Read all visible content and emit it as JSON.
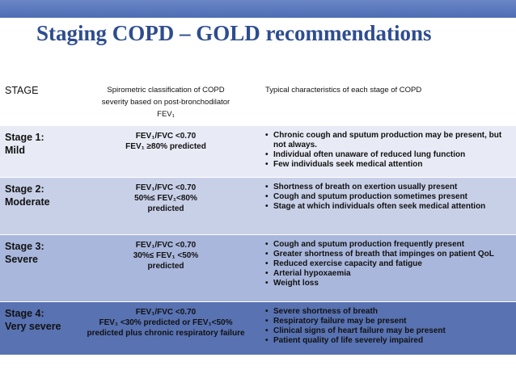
{
  "header": {
    "title": "Staging COPD – GOLD recommendations"
  },
  "table": {
    "columns": [
      "STAGE",
      [
        "Spirometric classification of COPD",
        "severity based on post-bronchodilator",
        "FEV₁"
      ],
      "Typical characteristics of each stage of COPD"
    ],
    "rows": [
      {
        "stage": [
          "Stage 1:",
          "Mild"
        ],
        "spirometry": [
          "FEV₁/FVC <0.70",
          "FEV₁ ≥80% predicted"
        ],
        "characteristics": [
          "Chronic cough and sputum production may be present, but not always.",
          "Individual often unaware of reduced lung function",
          "Few individuals seek medical attention"
        ]
      },
      {
        "stage": [
          "Stage 2:",
          "Moderate"
        ],
        "spirometry": [
          "FEV₁/FVC <0.70",
          "50%≤ FEV₁<80%",
          "predicted"
        ],
        "characteristics": [
          "Shortness of breath on exertion usually present",
          "Cough and sputum production sometimes present",
          "Stage at which individuals often seek medical attention"
        ]
      },
      {
        "stage": [
          "Stage 3:",
          "Severe"
        ],
        "spirometry": [
          "FEV₁/FVC <0.70",
          "30%≤ FEV₁ <50%",
          "predicted"
        ],
        "characteristics": [
          "Cough and sputum production frequently present",
          "Greater shortness of breath that impinges on patient QoL",
          "Reduced exercise capacity and fatigue",
          "Arterial hypoxaemia",
          "Weight loss"
        ]
      },
      {
        "stage": [
          "Stage 4:",
          "Very severe"
        ],
        "spirometry": [
          "FEV₁/FVC <0.70",
          "FEV₁ <30% predicted or FEV₁<50%",
          "predicted plus chronic respiratory failure"
        ],
        "characteristics": [
          "Severe shortness of breath",
          "Respiratory failure may be present",
          "Clinical signs of heart failure may be present",
          "Patient quality of life severely impaired"
        ]
      }
    ]
  }
}
